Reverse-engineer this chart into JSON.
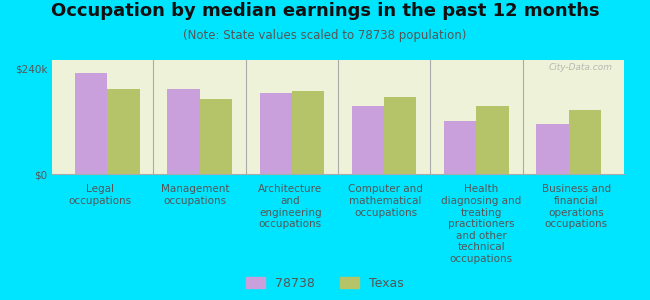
{
  "title": "Occupation by median earnings in the past 12 months",
  "subtitle": "(Note: State values scaled to 78738 population)",
  "background_color": "#00e5ff",
  "plot_bg_color": "#eef2d8",
  "categories": [
    "Legal\noccupations",
    "Management\noccupations",
    "Architecture\nand\nengineering\noccupations",
    "Computer and\nmathematical\noccupations",
    "Health\ndiagnosing and\ntreating\npractitioners\nand other\ntechnical\noccupations",
    "Business and\nfinancial\noperations\noccupations"
  ],
  "values_78738": [
    230000,
    195000,
    185000,
    155000,
    120000,
    115000
  ],
  "values_texas": [
    195000,
    170000,
    190000,
    175000,
    155000,
    145000
  ],
  "color_78738": "#c9a0dc",
  "color_texas": "#b5c468",
  "ylim": [
    0,
    260000
  ],
  "yticks": [
    0,
    240000
  ],
  "ytick_labels": [
    "$0",
    "$240k"
  ],
  "legend_78738": "78738",
  "legend_texas": "Texas",
  "bar_width": 0.35,
  "title_fontsize": 13,
  "subtitle_fontsize": 8.5,
  "tick_fontsize": 7.5,
  "legend_fontsize": 9,
  "text_color": "#555555",
  "title_color": "#111111",
  "watermark": "City-Data.com"
}
